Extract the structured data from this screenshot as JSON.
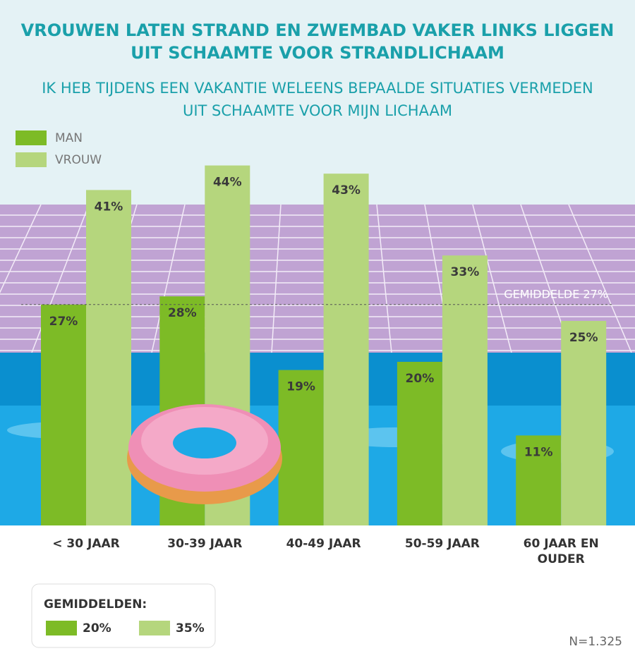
{
  "chart_data": {
    "type": "bar",
    "title": [
      "VROUWEN LATEN STRAND EN ZWEMBAD VAKER LINKS LIGGEN",
      "UIT SCHAAMTE VOOR STRANDLICHAAM"
    ],
    "subtitle": [
      "IK HEB TIJDENS EEN VAKANTIE WELEENS BEPAALDE SITUATIES VERMEDEN",
      "UIT SCHAAMTE VOOR MIJN LICHAAM"
    ],
    "categories": [
      "< 30 JAAR",
      "30-39 JAAR",
      "40-49 JAAR",
      "50-59 JAAR",
      "60 JAAR EN OUDER"
    ],
    "series": [
      {
        "name": "MAN",
        "color": "#7dbb26",
        "values": [
          27,
          28,
          19,
          20,
          11
        ],
        "value_labels": [
          "27%",
          "28%",
          "19%",
          "20%",
          "11%"
        ]
      },
      {
        "name": "VROUW",
        "color": "#b5d67d",
        "values": [
          41,
          44,
          43,
          33,
          25
        ],
        "value_labels": [
          "41%",
          "44%",
          "43%",
          "33%",
          "25%"
        ]
      }
    ],
    "ylim": [
      0,
      50
    ],
    "average_line": {
      "value": 27,
      "label": "GEMIDDELDE 27%"
    },
    "averages": {
      "title": "GEMIDDELDEN:",
      "values": [
        20,
        35
      ],
      "value_labels": [
        "20%",
        "35%"
      ]
    },
    "note": "N=1.325"
  }
}
